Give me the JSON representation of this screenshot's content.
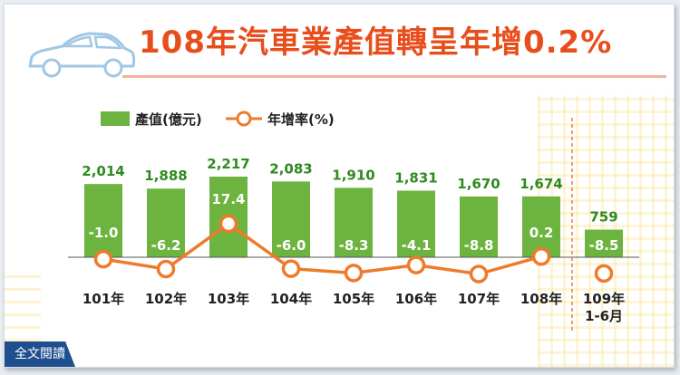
{
  "title": "108年汽車業產值轉呈年增0.2%",
  "read_button": "全文閱讀",
  "colors": {
    "bar": "#6cb43f",
    "line": "#f07a2c",
    "title": "#e84e1b",
    "value_text": "#2f8a1f",
    "button": "#1f4f8f"
  },
  "chart_data": {
    "type": "bar",
    "categories": [
      "101年",
      "102年",
      "103年",
      "104年",
      "105年",
      "106年",
      "107年",
      "108年",
      "109年\n1-6月"
    ],
    "series": [
      {
        "name": "產值(億元)",
        "type": "bar",
        "values": [
          2014,
          1888,
          2217,
          2083,
          1910,
          1831,
          1670,
          1674,
          759
        ],
        "labels": [
          "2,014",
          "1,888",
          "2,217",
          "2,083",
          "1,910",
          "1,831",
          "1,670",
          "1,674",
          "759"
        ]
      },
      {
        "name": "年增率(%)",
        "type": "line",
        "values": [
          -1.0,
          -6.2,
          17.4,
          -6.0,
          -8.3,
          -4.1,
          -8.8,
          0.2,
          -8.5
        ],
        "labels": [
          "-1.0",
          "-6.2",
          "17.4",
          "-6.0",
          "-8.3",
          "-4.1",
          "-8.8",
          "0.2",
          "-8.5"
        ]
      }
    ],
    "legend": [
      "產值(億元)",
      "年增率(%)"
    ],
    "legend_position": "top-left",
    "grid": false,
    "notes": "Last category (109年1-6月) separated by dashed vertical line; growth line connects only 101年–108年."
  }
}
